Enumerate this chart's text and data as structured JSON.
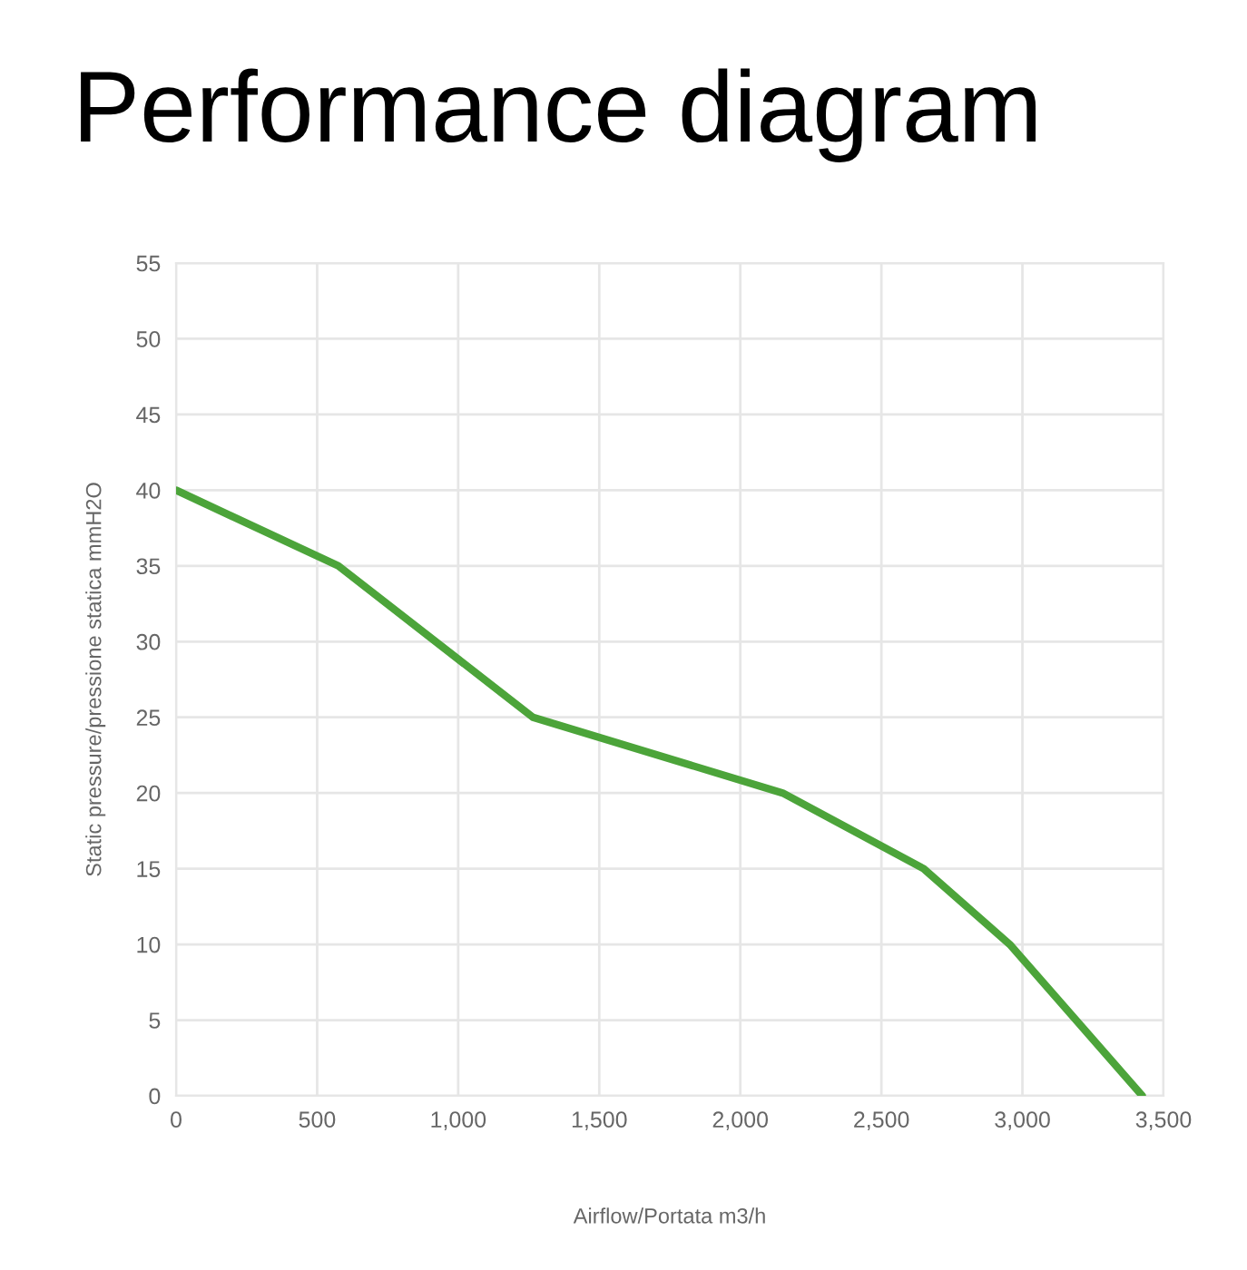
{
  "chart_data": {
    "type": "line",
    "title": "Performance diagram",
    "xlabel": "Airflow/Portata m3/h",
    "ylabel": "Static pressure/pressione statica mmH2O",
    "x": [
      0,
      575,
      1265,
      2150,
      2650,
      2955,
      3425
    ],
    "series": [
      {
        "color": "#4ca43a",
        "values": [
          40,
          35,
          25,
          20,
          15,
          10,
          0
        ]
      }
    ],
    "xlim": [
      0,
      3500
    ],
    "xticks": [
      0,
      500,
      {
        "value": 1000,
        "label": "1,000"
      },
      {
        "value": 1500,
        "label": "1,500"
      },
      {
        "value": 2000,
        "label": "2,000"
      },
      {
        "value": 2500,
        "label": "2,500"
      },
      {
        "value": 3000,
        "label": "3,000"
      },
      {
        "value": 3500,
        "label": "3,500"
      }
    ],
    "ylim": [
      0,
      55
    ],
    "yticks": [
      0,
      5,
      10,
      15,
      20,
      25,
      30,
      35,
      40,
      45,
      50,
      55
    ],
    "grid": true,
    "marker": "none",
    "line_style": "solid"
  }
}
